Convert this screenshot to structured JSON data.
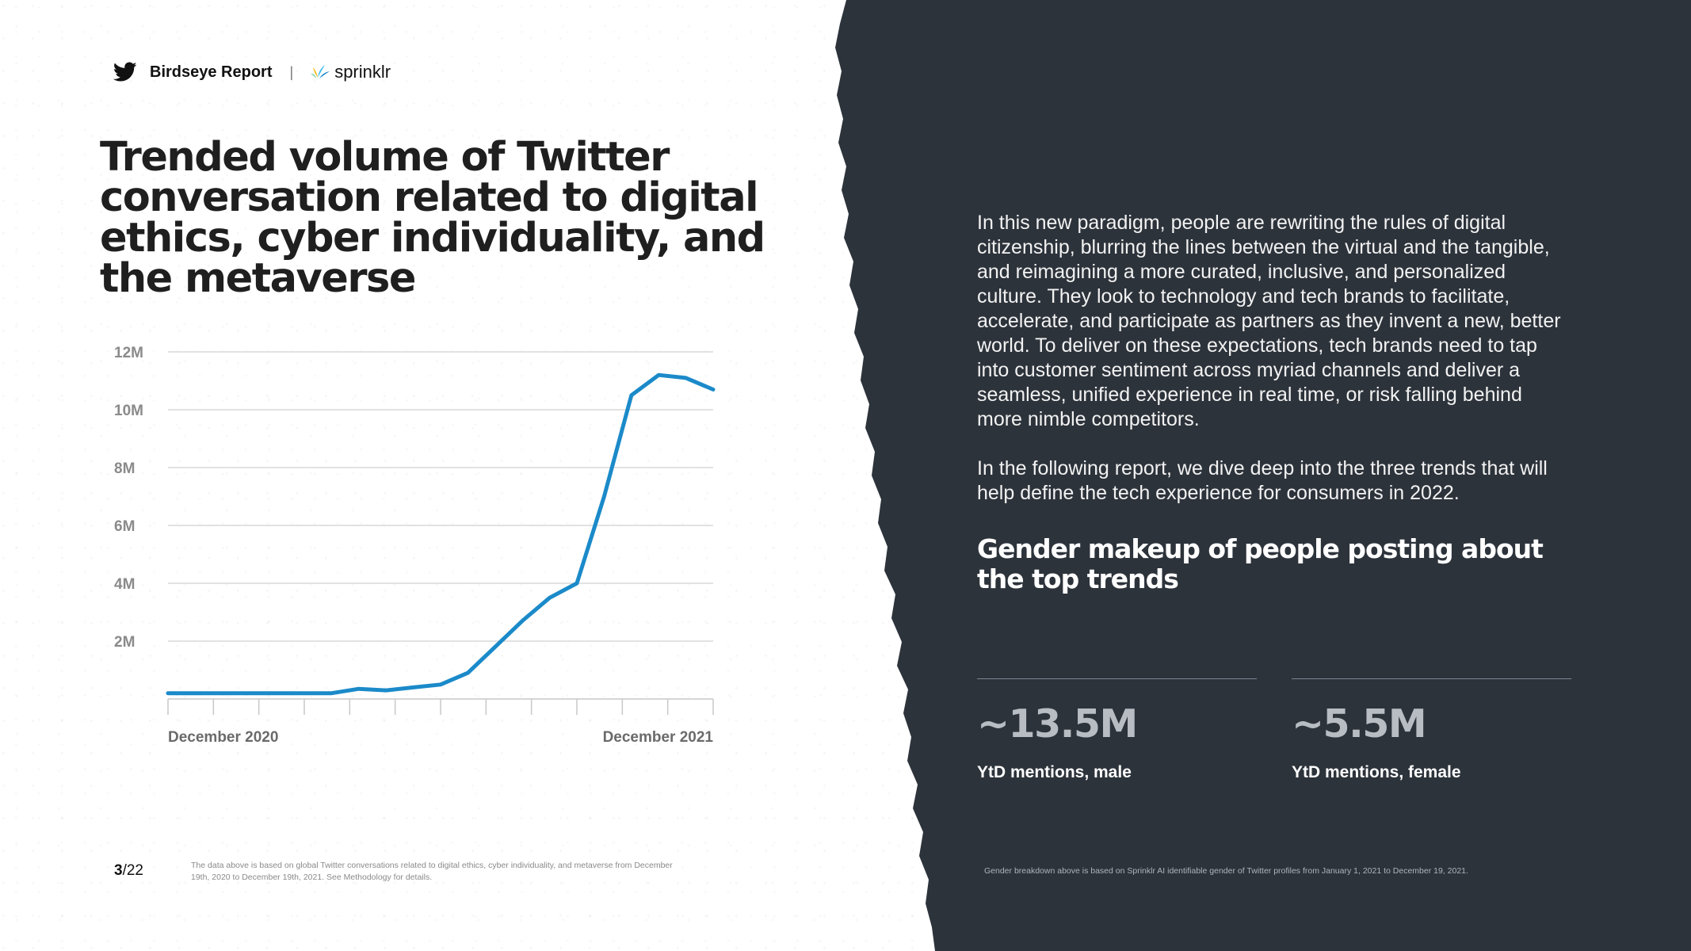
{
  "header": {
    "brand_label": "Birdseye Report",
    "separator": "|",
    "partner_label": "sprinklr",
    "icons": [
      "twitter-bird-icon",
      "sprinklr-logo-icon"
    ]
  },
  "title": "Trended volume of Twitter conversation related to digital ethics, cyber individuality, and the metaverse",
  "chart_data": {
    "type": "line",
    "title": "",
    "xlabel": "",
    "ylabel": "",
    "x_tick_labels": [
      "December 2020",
      "December 2021"
    ],
    "y_tick_labels": [
      "2M",
      "4M",
      "6M",
      "8M",
      "10M",
      "12M"
    ],
    "y_ticks": [
      2,
      4,
      6,
      8,
      10,
      12
    ],
    "ylim": [
      0,
      12
    ],
    "y_unit": "M",
    "grid": true,
    "color": "#1b8ac9",
    "series": [
      {
        "name": "",
        "values": [
          0.2,
          0.2,
          0.2,
          0.2,
          0.2,
          0.2,
          0.2,
          0.35,
          0.3,
          0.4,
          0.5,
          0.9,
          1.8,
          2.7,
          3.5,
          4.0,
          7.0,
          10.5,
          11.2,
          11.1,
          10.7
        ]
      }
    ]
  },
  "page": {
    "current": "3",
    "total": "/22"
  },
  "footnote_left": "The data above is based on global Twitter conversations related to digital ethics, cyber individuality, and metaverse from December 19th, 2020 to December 19th, 2021. See Methodology for details.",
  "paragraphs": [
    "In this new paradigm, people are rewriting the rules of digital citizenship, blurring the lines between the virtual and the tangible, and reimagining a more curated, inclusive, and personalized culture. They look to technology and tech brands to facilitate, accelerate, and participate as partners as they invent a new, better world. To deliver on these expectations, tech brands need to tap into customer sentiment across myriad channels and deliver a seamless, unified experience in real time, or risk falling behind more nimble competitors.",
    "In the following report, we dive deep into the three trends that will help define the tech experience for consumers in 2022."
  ],
  "gender_section": {
    "title": "Gender makeup of people posting about the top trends",
    "stats": [
      {
        "value": "~13.5M",
        "label": "YtD mentions, male"
      },
      {
        "value": "~5.5M",
        "label": "YtD mentions, female"
      }
    ]
  },
  "footnote_right": "Gender breakdown above is based on Sprinklr AI identifiable gender of Twitter profiles from January 1, 2021 to December 19, 2021.",
  "colors": {
    "dark_panel": "#2d333b",
    "line": "#1b8ac9",
    "gridline": "#d9d9d9"
  }
}
